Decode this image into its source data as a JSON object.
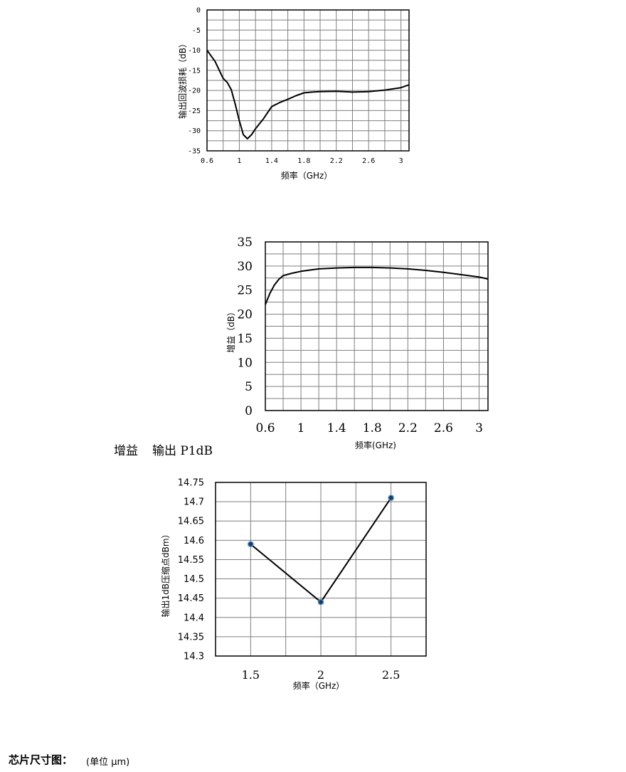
{
  "chart_data": [
    {
      "type": "line",
      "xlabel": "频率（GHz）",
      "ylabel": "输出回波损耗（dB）",
      "xlim": [
        0.6,
        3.1
      ],
      "ylim": [
        -35,
        0
      ],
      "xticks": [
        "0.6",
        "1",
        "1.4",
        "1.8",
        "2.2",
        "2.6",
        "3"
      ],
      "yticks": [
        "0",
        "-5",
        "-10",
        "-15",
        "-20",
        "-25",
        "-30",
        "-35"
      ],
      "grid": true,
      "series": [
        {
          "x": [
            0.6,
            0.7,
            0.8,
            0.85,
            0.9,
            0.95,
            1.0,
            1.05,
            1.1,
            1.15,
            1.2,
            1.3,
            1.4,
            1.5,
            1.6,
            1.7,
            1.8,
            1.9,
            2.0,
            2.2,
            2.4,
            2.6,
            2.8,
            3.0,
            3.1
          ],
          "y": [
            -10,
            -12.8,
            -17,
            -18,
            -19.8,
            -23.5,
            -27.5,
            -31,
            -32,
            -31,
            -29.5,
            -27,
            -24,
            -23,
            -22.2,
            -21.3,
            -20.6,
            -20.4,
            -20.3,
            -20.2,
            -20.4,
            -20.3,
            -19.9,
            -19.3,
            -18.6
          ]
        }
      ]
    },
    {
      "type": "line",
      "xlabel": "频率(GHz)",
      "ylabel": "增益（dB）",
      "xlim": [
        0.6,
        3.1
      ],
      "ylim": [
        0,
        35
      ],
      "xticks": [
        "0.6",
        "1",
        "1.4",
        "1.8",
        "2.2",
        "2.6",
        "3"
      ],
      "yticks": [
        "35",
        "30",
        "25",
        "20",
        "15",
        "10",
        "5",
        "0"
      ],
      "grid": true,
      "series": [
        {
          "x": [
            0.6,
            0.65,
            0.7,
            0.75,
            0.8,
            0.9,
            1.0,
            1.2,
            1.4,
            1.6,
            1.8,
            2.0,
            2.2,
            2.4,
            2.6,
            2.8,
            3.0,
            3.1
          ],
          "y": [
            22,
            24.3,
            26,
            27.2,
            28,
            28.5,
            28.9,
            29.4,
            29.6,
            29.7,
            29.7,
            29.6,
            29.4,
            29.1,
            28.7,
            28.2,
            27.7,
            27.3
          ]
        }
      ]
    },
    {
      "type": "line",
      "xlabel": "频率（GHz）",
      "ylabel": "输出1dB压缩点dBm）",
      "categories": [
        "1.5",
        "2",
        "2.5"
      ],
      "ylim": [
        14.3,
        14.75
      ],
      "yticks": [
        "14.75",
        "14.7",
        "14.65",
        "14.6",
        "14.55",
        "14.5",
        "14.45",
        "14.4",
        "14.35",
        "14.3"
      ],
      "grid": true,
      "series": [
        {
          "values": [
            14.59,
            14.44,
            14.71
          ]
        }
      ]
    }
  ],
  "section_labels": [
    "增益",
    "输出 P1dB"
  ],
  "chip_size": {
    "title": "芯片尺寸图：",
    "unit": "(单位 μm)"
  },
  "colors": {
    "line": "#000000",
    "grid": "#7f7f7f",
    "marker_fill": "#1f3864",
    "marker_edge": "#4a90c8"
  }
}
